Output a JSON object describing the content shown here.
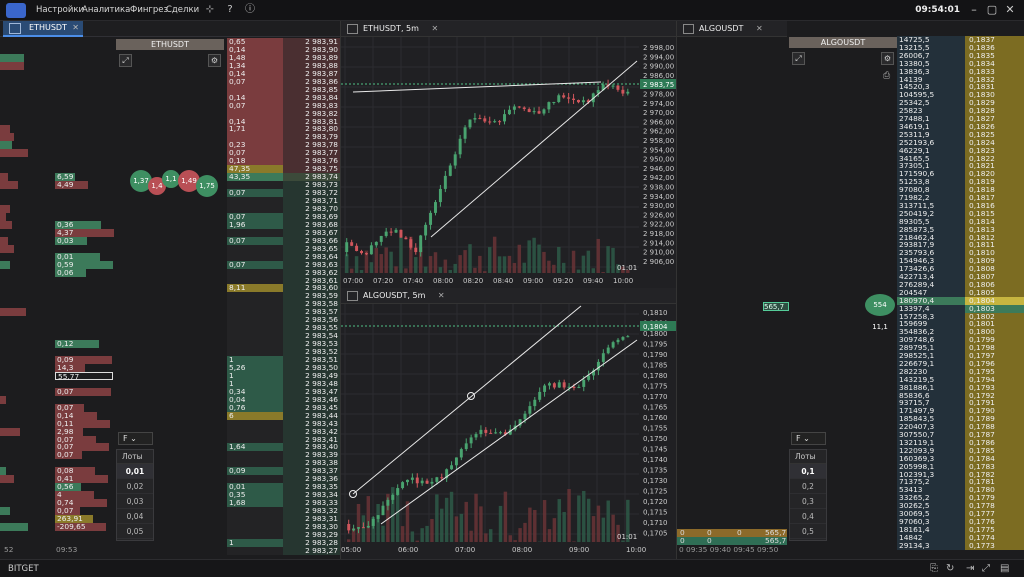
{
  "topbar": {
    "menu": [
      "Настройки",
      "Аналитика",
      "Фингрез",
      "Сделки"
    ],
    "clock": "09:54:01"
  },
  "tab_main": {
    "label": "ETHUSDT"
  },
  "eth_panel": {
    "title": "ETHUSDT"
  },
  "algo_panel": {
    "title": "ALGOUSDT"
  },
  "algo_tab": {
    "label": "ALGOUSDT"
  },
  "eth_chart": {
    "title": "ETHUSDT, 5m",
    "timer": "01:01",
    "last_price": "2 983,75",
    "xticks": [
      "07:00",
      "07:20",
      "07:40",
      "08:00",
      "08:20",
      "08:40",
      "09:00",
      "09:20",
      "09:40",
      "10:00"
    ],
    "yticks": [
      "2 998,00",
      "2 994,00",
      "2 990,00",
      "2 986,00",
      "2 983,75",
      "2 978,00",
      "2 974,00",
      "2 970,00",
      "2 966,00",
      "2 962,00",
      "2 958,00",
      "2 954,00",
      "2 950,00",
      "2 946,00",
      "2 942,00",
      "2 938,00",
      "2 934,00",
      "2 930,00",
      "2 926,00",
      "2 922,00",
      "2 918,00",
      "2 914,00",
      "2 910,00",
      "2 906,00"
    ]
  },
  "algo_chart": {
    "title": "ALGOUSDT, 5m",
    "timer": "01:01",
    "last_price": "0,1804",
    "xticks": [
      "05:00",
      "06:00",
      "07:00",
      "08:00",
      "09:00",
      "10:00"
    ],
    "yticks": [
      "0,1810",
      "0,1804",
      "0,1800",
      "0,1795",
      "0,1790",
      "0,1785",
      "0,1780",
      "0,1775",
      "0,1770",
      "0,1765",
      "0,1760",
      "0,1755",
      "0,1750",
      "0,1745",
      "0,1740",
      "0,1735",
      "0,1730",
      "0,1725",
      "0,1720",
      "0,1715",
      "0,1710",
      "0,1705"
    ]
  },
  "lots": {
    "label": "Лоты",
    "levels": [
      "0,01",
      "0,02",
      "0,03",
      "0,04",
      "0,05"
    ],
    "filter": "F"
  },
  "lots_algo": {
    "label": "Лоты",
    "levels": [
      "0,1",
      "0,2",
      "0,3",
      "0,4",
      "0,5"
    ],
    "filter": "F"
  },
  "eth_prices": [
    "2 983,91",
    "2 983,90",
    "2 983,89",
    "2 983,88",
    "2 983,87",
    "2 983,86",
    "2 983,85",
    "2 983,84",
    "2 983,83",
    "2 983,82",
    "2 983,81",
    "2 983,80",
    "2 983,79",
    "2 983,78",
    "2 983,77",
    "2 983,76",
    "2 983,75",
    "2 983,74",
    "2 983,73",
    "2 983,72",
    "2 983,71",
    "2 983,70",
    "2 983,69",
    "2 983,68",
    "2 983,67",
    "2 983,66",
    "2 983,65",
    "2 983,64",
    "2 983,63",
    "2 983,62",
    "2 983,61",
    "2 983,60",
    "2 983,59",
    "2 983,58",
    "2 983,57",
    "2 983,56",
    "2 983,55",
    "2 983,54",
    "2 983,53",
    "2 983,52",
    "2 983,51",
    "2 983,50",
    "2 983,49",
    "2 983,48",
    "2 983,47",
    "2 983,46",
    "2 983,45",
    "2 983,44",
    "2 983,43",
    "2 983,42",
    "2 983,41",
    "2 983,40",
    "2 983,39",
    "2 983,38",
    "2 983,37",
    "2 983,36",
    "2 983,35",
    "2 983,34",
    "2 983,33",
    "2 983,32",
    "2 983,31",
    "2 983,30",
    "2 983,29",
    "2 983,28",
    "2 983,27"
  ],
  "eth_book": [
    {
      "v": "0,65",
      "t": "a"
    },
    {
      "v": "0,14",
      "t": "a"
    },
    {
      "v": "1,48",
      "t": "a"
    },
    {
      "v": "1,34",
      "t": "a"
    },
    {
      "v": "0,14",
      "t": "a"
    },
    {
      "v": "0,07",
      "t": "a"
    },
    {
      "v": "",
      "t": "a"
    },
    {
      "v": "0,14",
      "t": "a"
    },
    {
      "v": "0,07",
      "t": "a"
    },
    {
      "v": "",
      "t": "a"
    },
    {
      "v": "0,14",
      "t": "a"
    },
    {
      "v": "1,71",
      "t": "a"
    },
    {
      "v": "",
      "t": "a"
    },
    {
      "v": "0,23",
      "t": "a"
    },
    {
      "v": "0,07",
      "t": "a"
    },
    {
      "v": "0,18",
      "t": "a"
    },
    {
      "v": "47,35",
      "t": "y"
    },
    {
      "v": "43,35",
      "t": "g"
    },
    {
      "v": "",
      "t": ""
    },
    {
      "v": "0,07",
      "t": "b"
    },
    {
      "v": "",
      "t": ""
    },
    {
      "v": "",
      "t": ""
    },
    {
      "v": "0,07",
      "t": "b"
    },
    {
      "v": "1,96",
      "t": "b"
    },
    {
      "v": "",
      "t": ""
    },
    {
      "v": "0,07",
      "t": "b"
    },
    {
      "v": "",
      "t": ""
    },
    {
      "v": "",
      "t": ""
    },
    {
      "v": "0,07",
      "t": "b"
    },
    {
      "v": "",
      "t": ""
    },
    {
      "v": "",
      "t": ""
    },
    {
      "v": "8,11",
      "t": "y"
    },
    {
      "v": "",
      "t": ""
    },
    {
      "v": "",
      "t": ""
    },
    {
      "v": "",
      "t": ""
    },
    {
      "v": "",
      "t": ""
    },
    {
      "v": "",
      "t": ""
    },
    {
      "v": "",
      "t": ""
    },
    {
      "v": "",
      "t": ""
    },
    {
      "v": "",
      "t": ""
    },
    {
      "v": "1",
      "t": "b"
    },
    {
      "v": "5,26",
      "t": "b"
    },
    {
      "v": "1",
      "t": "b"
    },
    {
      "v": "1",
      "t": "b"
    },
    {
      "v": "0,34",
      "t": "b"
    },
    {
      "v": "0,04",
      "t": "b"
    },
    {
      "v": "0,76",
      "t": "b"
    },
    {
      "v": "6",
      "t": "y"
    },
    {
      "v": "",
      "t": ""
    },
    {
      "v": "",
      "t": ""
    },
    {
      "v": "",
      "t": ""
    },
    {
      "v": "1,64",
      "t": "b"
    },
    {
      "v": "",
      "t": ""
    },
    {
      "v": "",
      "t": ""
    },
    {
      "v": "0,09",
      "t": "b"
    },
    {
      "v": "",
      "t": ""
    },
    {
      "v": "0,01",
      "t": "b"
    },
    {
      "v": "0,35",
      "t": "b"
    },
    {
      "v": "1,68",
      "t": "b"
    },
    {
      "v": "",
      "t": ""
    },
    {
      "v": "",
      "t": ""
    },
    {
      "v": "",
      "t": ""
    },
    {
      "v": "",
      "t": ""
    },
    {
      "v": "1",
      "t": "b"
    },
    {
      "v": "",
      "t": ""
    }
  ],
  "left_vals": [
    {
      "v": "6,59",
      "t": "g",
      "i": 17
    },
    {
      "v": "4,49",
      "t": "r",
      "i": 18
    },
    {
      "v": "0,36",
      "t": "g",
      "i": 23
    },
    {
      "v": "4,37",
      "t": "r",
      "i": 24
    },
    {
      "v": "0,03",
      "t": "g",
      "i": 25
    },
    {
      "v": "0,01",
      "t": "g",
      "i": 27
    },
    {
      "v": "0,59",
      "t": "g",
      "i": 28
    },
    {
      "v": "0,06",
      "t": "g",
      "i": 29
    },
    {
      "v": "0,12",
      "t": "g",
      "i": 38
    },
    {
      "v": "0,09",
      "t": "r",
      "i": 40
    },
    {
      "v": "14,3",
      "t": "r",
      "i": 41
    },
    {
      "v": "55,77",
      "t": "w",
      "i": 42
    },
    {
      "v": "0,07",
      "t": "r",
      "i": 44
    },
    {
      "v": "0,07",
      "t": "r",
      "i": 46
    },
    {
      "v": "0,14",
      "t": "r",
      "i": 47
    },
    {
      "v": "0,11",
      "t": "r",
      "i": 48
    },
    {
      "v": "2,98",
      "t": "r",
      "i": 49
    },
    {
      "v": "0,07",
      "t": "r",
      "i": 50
    },
    {
      "v": "0,07",
      "t": "r",
      "i": 51
    },
    {
      "v": "0,07",
      "t": "r",
      "i": 52
    },
    {
      "v": "0,08",
      "t": "r",
      "i": 54
    },
    {
      "v": "0,41",
      "t": "r",
      "i": 55
    },
    {
      "v": "0,56",
      "t": "g",
      "i": 56
    },
    {
      "v": "4",
      "t": "r",
      "i": 57
    },
    {
      "v": "0,74",
      "t": "r",
      "i": 58
    },
    {
      "v": "0,07",
      "t": "r",
      "i": 59
    },
    {
      "v": "263,91",
      "t": "y",
      "i": 60
    },
    {
      "v": "-209,65",
      "t": "r",
      "i": 61
    }
  ],
  "left_bottom": {
    "a": "52",
    "b": "09:53"
  },
  "bubbles": [
    {
      "v": "1,37"
    },
    {
      "v": "1,4"
    },
    {
      "v": "1,1"
    },
    {
      "v": "1,49"
    },
    {
      "v": "1,75"
    }
  ],
  "algo_vol": [
    "14725,5",
    "13215,5",
    "26006,7",
    "13380,5",
    "13836,3",
    "14139",
    "14520,3",
    "104595,5",
    "25342,5",
    "25823",
    "27488,1",
    "34619,1",
    "25311,9",
    "252193,6",
    "46229,1",
    "34165,5",
    "37305,1",
    "171590,6",
    "51253,8",
    "97080,8",
    "71982,2",
    "313711,5",
    "250419,2",
    "89305,5",
    "285873,5",
    "218462,4",
    "293817,9",
    "235793,6",
    "154946,3",
    "173426,6",
    "422713,4",
    "276289,4",
    "204547",
    "180970,4",
    "13397,4",
    "157258,3",
    "159699",
    "354836,2",
    "309748,6",
    "289795,1",
    "298525,1",
    "226679,1",
    "282230",
    "143219,5",
    "381886,1",
    "85836,6",
    "93715,7",
    "171497,9",
    "185843,5",
    "220407,3",
    "307550,7",
    "132119,1",
    "122093,9",
    "160369,3",
    "205998,1",
    "102391,3",
    "71375,2",
    "53413",
    "33265,2",
    "30262,5",
    "30069,5",
    "97060,3",
    "18161,4",
    "14842",
    "29134,3"
  ],
  "algo_prices": [
    "0,1837",
    "0,1836",
    "0,1835",
    "0,1834",
    "0,1833",
    "0,1832",
    "0,1831",
    "0,1830",
    "0,1829",
    "0,1828",
    "0,1827",
    "0,1826",
    "0,1825",
    "0,1824",
    "0,1823",
    "0,1822",
    "0,1821",
    "0,1820",
    "0,1819",
    "0,1818",
    "0,1817",
    "0,1816",
    "0,1815",
    "0,1814",
    "0,1813",
    "0,1812",
    "0,1811",
    "0,1810",
    "0,1809",
    "0,1808",
    "0,1807",
    "0,1806",
    "0,1805",
    "0,1804",
    "0,1803",
    "0,1802",
    "0,1801",
    "0,1800",
    "0,1799",
    "0,1798",
    "0,1797",
    "0,1796",
    "0,1795",
    "0,1794",
    "0,1793",
    "0,1792",
    "0,1791",
    "0,1790",
    "0,1789",
    "0,1788",
    "0,1787",
    "0,1786",
    "0,1785",
    "0,1784",
    "0,1783",
    "0,1782",
    "0,1781",
    "0,1780",
    "0,1779",
    "0,1778",
    "0,1777",
    "0,1776",
    "0,1775",
    "0,1774",
    "0,1773"
  ],
  "algo_left": {
    "marker": "565,7",
    "bubble": "554 11,1",
    "row1": [
      "0",
      "0",
      "0",
      "565,7"
    ],
    "row2": [
      "0",
      "0",
      "565,7"
    ],
    "times": "0 09:35 09:40 09:45 09:50"
  },
  "bottombar": {
    "exchange": "BITGET"
  }
}
